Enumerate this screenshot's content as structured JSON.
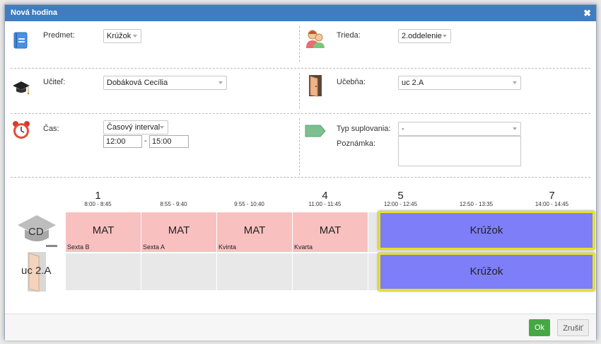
{
  "dialog": {
    "title": "Nová hodina",
    "close_icon": "close-icon"
  },
  "form": {
    "predmet": {
      "label": "Predmet:",
      "value": "Krúžok",
      "icon": "book-icon"
    },
    "trieda": {
      "label": "Trieda:",
      "value": "2.oddelenie",
      "icon": "students-icon"
    },
    "ucitel": {
      "label": "Učiteľ:",
      "value": "Dobáková Cecília",
      "icon": "graduation-cap-icon"
    },
    "ucebna": {
      "label": "Učebňa:",
      "value": "uc 2.A",
      "icon": "door-icon"
    },
    "cas": {
      "label": "Čas:",
      "value": "Časový interval",
      "from": "12:00",
      "separator": "-",
      "to": "15:00",
      "icon": "alarm-clock-icon"
    },
    "typ": {
      "label": "Typ suplovania:",
      "value": "-",
      "icon": "tag-icon"
    },
    "poznamka": {
      "label": "Poznámka:",
      "value": ""
    }
  },
  "timetable": {
    "columns": [
      {
        "num": "1",
        "time": "8:00 - 8:45"
      },
      {
        "num": "",
        "time": "8:55 - 9:40"
      },
      {
        "num": "",
        "time": "9:55 - 10:40"
      },
      {
        "num": "4",
        "time": "11:00 - 11:45"
      },
      {
        "num": "5",
        "time": "12:00 - 12:45"
      },
      {
        "num": "",
        "time": "12:50 - 13:35"
      },
      {
        "num": "7",
        "time": "14:00 - 14:45"
      }
    ],
    "rows": [
      {
        "header": "CD",
        "icon": "teacher-cap-icon",
        "lessons": [
          {
            "subject": "MAT",
            "class": "Sexta B"
          },
          {
            "subject": "MAT",
            "class": "Sexta A"
          },
          {
            "subject": "MAT",
            "class": "Kvinta"
          },
          {
            "subject": "MAT",
            "class": "Kvarta"
          }
        ],
        "selected": "Krúžok"
      },
      {
        "header": "uc 2.A",
        "icon": "door-icon",
        "selected": "Krúžok"
      }
    ]
  },
  "footer": {
    "ok_label": "Ok",
    "cancel_label": "Zrušiť"
  },
  "colors": {
    "title_bar": "#3f7cc0",
    "lesson": "#f9c0c0",
    "selected": "#7e7ef9",
    "selected_border": "#e6e31c",
    "ok": "#45a845"
  }
}
